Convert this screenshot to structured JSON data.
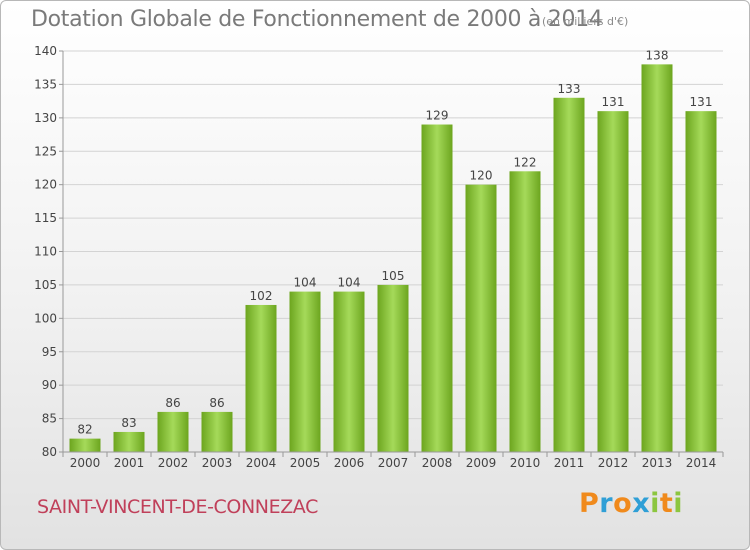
{
  "header": {
    "title": "Dotation Globale de Fonctionnement de 2000 à 2014",
    "unit": "(en milliers d'€)"
  },
  "footer": {
    "commune": "SAINT-VINCENT-DE-CONNEZAC",
    "brand": "Proxiti",
    "brand_colors": [
      "#f08a1c",
      "#2f9fd6",
      "#f08a1c",
      "#2f9fd6",
      "#8cc63f",
      "#f08a1c",
      "#8cc63f"
    ]
  },
  "colors": {
    "bar_light": "#a5da5a",
    "bar_dark": "#6ca51e",
    "grid": "#d3d3d3",
    "axis": "#999999"
  },
  "chart_data": {
    "type": "bar",
    "categories": [
      "2000",
      "2001",
      "2002",
      "2003",
      "2004",
      "2005",
      "2006",
      "2007",
      "2008",
      "2009",
      "2010",
      "2011",
      "2012",
      "2013",
      "2014"
    ],
    "values": [
      82,
      83,
      86,
      86,
      102,
      104,
      104,
      105,
      129,
      120,
      122,
      133,
      131,
      138,
      131
    ],
    "title": "Dotation Globale de Fonctionnement de 2000 à 2014",
    "xlabel": "",
    "ylabel": "",
    "ylim": [
      80,
      140
    ],
    "yticks": [
      80,
      85,
      90,
      95,
      100,
      105,
      110,
      115,
      120,
      125,
      130,
      135,
      140
    ],
    "grid": true,
    "legend": "none"
  }
}
